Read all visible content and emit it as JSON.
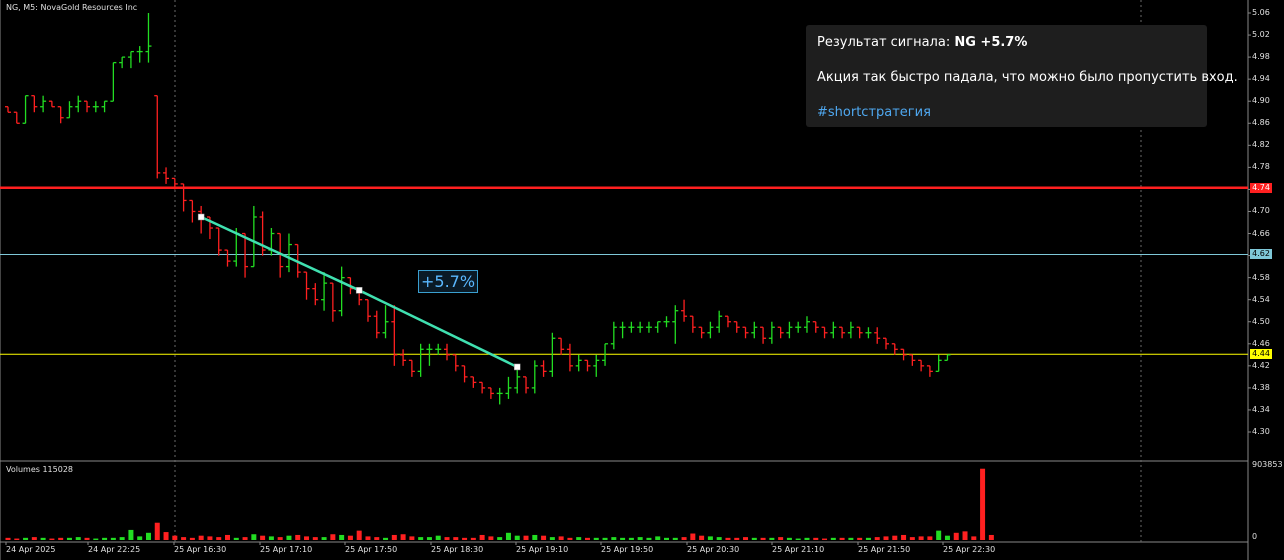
{
  "symbol_title": "NG, M5:  NovaGold Resources Inc",
  "volume_title": "Volumes 115028",
  "volume_max_label": "903853",
  "volume_zero_label": "0",
  "y_ticks": [
    "5.06",
    "5.02",
    "4.98",
    "4.94",
    "4.90",
    "4.86",
    "4.82",
    "4.78",
    "4.74",
    "4.70",
    "4.66",
    "4.62",
    "4.58",
    "4.54",
    "4.50",
    "4.46",
    "4.42",
    "4.38",
    "4.34",
    "4.30"
  ],
  "x_ticks": [
    "24 Apr 2025",
    "24 Apr 22:25",
    "25 Apr 16:30",
    "25 Apr 17:10",
    "25 Apr 17:50",
    "25 Apr 18:30",
    "25 Apr 19:10",
    "25 Apr 19:50",
    "25 Apr 20:30",
    "25 Apr 21:10",
    "25 Apr 21:50",
    "25 Apr 22:30"
  ],
  "price_lines": {
    "red": {
      "label": "4.74",
      "value": 4.743,
      "color": "#ff2020"
    },
    "cyan": {
      "label": "4.62",
      "value": 4.622,
      "color": "#7fc8d8"
    },
    "yellow": {
      "label": "4.44",
      "value": 4.441,
      "color": "#ffff00"
    }
  },
  "profit_label": "+5.7%",
  "signal": {
    "prefix": "Результат сигнала: ",
    "result": "NG +5.7%",
    "text": "Акция так быстро падала, что можно было пропустить вход.",
    "hashtag": "#shortстратегия"
  },
  "colors": {
    "up": "#22dd22",
    "down": "#ff2020",
    "trend": "#40e0b0",
    "grid": "#3a3a3a"
  },
  "chart_data": {
    "type": "bar",
    "title": "NG, M5:  NovaGold Resources Inc",
    "ylim": [
      4.26,
      5.08
    ],
    "signal_line": [
      {
        "bar": 22,
        "price": 4.69
      },
      {
        "bar": 40,
        "price": 4.557
      },
      {
        "bar": 58,
        "price": 4.418
      }
    ],
    "ohlc": [
      {
        "o": 4.89,
        "h": 4.89,
        "l": 4.88,
        "c": 4.88
      },
      {
        "o": 4.88,
        "h": 4.88,
        "l": 4.86,
        "c": 4.86
      },
      {
        "o": 4.86,
        "h": 4.91,
        "l": 4.86,
        "c": 4.91
      },
      {
        "o": 4.91,
        "h": 4.91,
        "l": 4.88,
        "c": 4.89
      },
      {
        "o": 4.89,
        "h": 4.91,
        "l": 4.88,
        "c": 4.9
      },
      {
        "o": 4.9,
        "h": 4.9,
        "l": 4.89,
        "c": 4.89
      },
      {
        "o": 4.89,
        "h": 4.89,
        "l": 4.86,
        "c": 4.87
      },
      {
        "o": 4.87,
        "h": 4.9,
        "l": 4.87,
        "c": 4.89
      },
      {
        "o": 4.89,
        "h": 4.91,
        "l": 4.88,
        "c": 4.9
      },
      {
        "o": 4.9,
        "h": 4.9,
        "l": 4.88,
        "c": 4.89
      },
      {
        "o": 4.89,
        "h": 4.9,
        "l": 4.88,
        "c": 4.89
      },
      {
        "o": 4.89,
        "h": 4.9,
        "l": 4.88,
        "c": 4.9
      },
      {
        "o": 4.9,
        "h": 4.97,
        "l": 4.9,
        "c": 4.97
      },
      {
        "o": 4.97,
        "h": 4.98,
        "l": 4.96,
        "c": 4.98
      },
      {
        "o": 4.98,
        "h": 4.99,
        "l": 4.96,
        "c": 4.99
      },
      {
        "o": 4.99,
        "h": 5.0,
        "l": 4.97,
        "c": 4.99
      },
      {
        "o": 4.99,
        "h": 5.06,
        "l": 4.97,
        "c": 5.0
      },
      {
        "o": 4.91,
        "h": 4.91,
        "l": 4.76,
        "c": 4.77
      },
      {
        "o": 4.77,
        "h": 4.78,
        "l": 4.75,
        "c": 4.76
      },
      {
        "o": 4.76,
        "h": 4.76,
        "l": 4.74,
        "c": 4.75
      },
      {
        "o": 4.75,
        "h": 4.75,
        "l": 4.7,
        "c": 4.72
      },
      {
        "o": 4.72,
        "h": 4.72,
        "l": 4.68,
        "c": 4.7
      },
      {
        "o": 4.7,
        "h": 4.71,
        "l": 4.66,
        "c": 4.69
      },
      {
        "o": 4.69,
        "h": 4.69,
        "l": 4.65,
        "c": 4.67
      },
      {
        "o": 4.67,
        "h": 4.67,
        "l": 4.62,
        "c": 4.63
      },
      {
        "o": 4.63,
        "h": 4.63,
        "l": 4.6,
        "c": 4.61
      },
      {
        "o": 4.61,
        "h": 4.67,
        "l": 4.6,
        "c": 4.66
      },
      {
        "o": 4.66,
        "h": 4.66,
        "l": 4.58,
        "c": 4.6
      },
      {
        "o": 4.6,
        "h": 4.71,
        "l": 4.6,
        "c": 4.69
      },
      {
        "o": 4.69,
        "h": 4.7,
        "l": 4.62,
        "c": 4.63
      },
      {
        "o": 4.63,
        "h": 4.67,
        "l": 4.62,
        "c": 4.66
      },
      {
        "o": 4.66,
        "h": 4.66,
        "l": 4.58,
        "c": 4.6
      },
      {
        "o": 4.6,
        "h": 4.66,
        "l": 4.59,
        "c": 4.64
      },
      {
        "o": 4.64,
        "h": 4.64,
        "l": 4.58,
        "c": 4.59
      },
      {
        "o": 4.59,
        "h": 4.59,
        "l": 4.54,
        "c": 4.56
      },
      {
        "o": 4.56,
        "h": 4.57,
        "l": 4.53,
        "c": 4.54
      },
      {
        "o": 4.54,
        "h": 4.59,
        "l": 4.52,
        "c": 4.57
      },
      {
        "o": 4.57,
        "h": 4.57,
        "l": 4.5,
        "c": 4.52
      },
      {
        "o": 4.52,
        "h": 4.6,
        "l": 4.51,
        "c": 4.58
      },
      {
        "o": 4.58,
        "h": 4.58,
        "l": 4.55,
        "c": 4.56
      },
      {
        "o": 4.56,
        "h": 4.56,
        "l": 4.53,
        "c": 4.54
      },
      {
        "o": 4.54,
        "h": 4.54,
        "l": 4.5,
        "c": 4.51
      },
      {
        "o": 4.51,
        "h": 4.52,
        "l": 4.47,
        "c": 4.48
      },
      {
        "o": 4.48,
        "h": 4.53,
        "l": 4.47,
        "c": 4.5
      },
      {
        "o": 4.5,
        "h": 4.53,
        "l": 4.42,
        "c": 4.44
      },
      {
        "o": 4.44,
        "h": 4.45,
        "l": 4.42,
        "c": 4.43
      },
      {
        "o": 4.43,
        "h": 4.43,
        "l": 4.4,
        "c": 4.41
      },
      {
        "o": 4.41,
        "h": 4.46,
        "l": 4.4,
        "c": 4.45
      },
      {
        "o": 4.45,
        "h": 4.46,
        "l": 4.42,
        "c": 4.45
      },
      {
        "o": 4.45,
        "h": 4.46,
        "l": 4.44,
        "c": 4.45
      },
      {
        "o": 4.45,
        "h": 4.46,
        "l": 4.43,
        "c": 4.44
      },
      {
        "o": 4.44,
        "h": 4.44,
        "l": 4.41,
        "c": 4.42
      },
      {
        "o": 4.42,
        "h": 4.42,
        "l": 4.39,
        "c": 4.4
      },
      {
        "o": 4.4,
        "h": 4.4,
        "l": 4.38,
        "c": 4.39
      },
      {
        "o": 4.39,
        "h": 4.39,
        "l": 4.37,
        "c": 4.38
      },
      {
        "o": 4.38,
        "h": 4.38,
        "l": 4.36,
        "c": 4.37
      },
      {
        "o": 4.37,
        "h": 4.38,
        "l": 4.35,
        "c": 4.37
      },
      {
        "o": 4.37,
        "h": 4.4,
        "l": 4.36,
        "c": 4.38
      },
      {
        "o": 4.38,
        "h": 4.42,
        "l": 4.37,
        "c": 4.4
      },
      {
        "o": 4.4,
        "h": 4.4,
        "l": 4.37,
        "c": 4.38
      },
      {
        "o": 4.38,
        "h": 4.43,
        "l": 4.37,
        "c": 4.42
      },
      {
        "o": 4.42,
        "h": 4.43,
        "l": 4.4,
        "c": 4.41
      },
      {
        "o": 4.41,
        "h": 4.48,
        "l": 4.4,
        "c": 4.47
      },
      {
        "o": 4.47,
        "h": 4.47,
        "l": 4.44,
        "c": 4.45
      },
      {
        "o": 4.45,
        "h": 4.46,
        "l": 4.41,
        "c": 4.42
      },
      {
        "o": 4.42,
        "h": 4.44,
        "l": 4.41,
        "c": 4.43
      },
      {
        "o": 4.43,
        "h": 4.43,
        "l": 4.41,
        "c": 4.42
      },
      {
        "o": 4.42,
        "h": 4.44,
        "l": 4.4,
        "c": 4.43
      },
      {
        "o": 4.43,
        "h": 4.46,
        "l": 4.42,
        "c": 4.46
      },
      {
        "o": 4.46,
        "h": 4.5,
        "l": 4.45,
        "c": 4.49
      },
      {
        "o": 4.49,
        "h": 4.5,
        "l": 4.47,
        "c": 4.49
      },
      {
        "o": 4.49,
        "h": 4.5,
        "l": 4.48,
        "c": 4.49
      },
      {
        "o": 4.49,
        "h": 4.5,
        "l": 4.48,
        "c": 4.49
      },
      {
        "o": 4.49,
        "h": 4.5,
        "l": 4.48,
        "c": 4.49
      },
      {
        "o": 4.49,
        "h": 4.5,
        "l": 4.48,
        "c": 4.5
      },
      {
        "o": 4.5,
        "h": 4.51,
        "l": 4.49,
        "c": 4.5
      },
      {
        "o": 4.5,
        "h": 4.53,
        "l": 4.46,
        "c": 4.52
      },
      {
        "o": 4.52,
        "h": 4.54,
        "l": 4.5,
        "c": 4.51
      },
      {
        "o": 4.51,
        "h": 4.51,
        "l": 4.48,
        "c": 4.49
      },
      {
        "o": 4.49,
        "h": 4.49,
        "l": 4.47,
        "c": 4.48
      },
      {
        "o": 4.48,
        "h": 4.5,
        "l": 4.47,
        "c": 4.49
      },
      {
        "o": 4.49,
        "h": 4.52,
        "l": 4.48,
        "c": 4.51
      },
      {
        "o": 4.51,
        "h": 4.51,
        "l": 4.49,
        "c": 4.5
      },
      {
        "o": 4.5,
        "h": 4.5,
        "l": 4.48,
        "c": 4.49
      },
      {
        "o": 4.49,
        "h": 4.49,
        "l": 4.47,
        "c": 4.48
      },
      {
        "o": 4.48,
        "h": 4.5,
        "l": 4.47,
        "c": 4.49
      },
      {
        "o": 4.49,
        "h": 4.49,
        "l": 4.46,
        "c": 4.47
      },
      {
        "o": 4.47,
        "h": 4.5,
        "l": 4.46,
        "c": 4.49
      },
      {
        "o": 4.49,
        "h": 4.49,
        "l": 4.47,
        "c": 4.48
      },
      {
        "o": 4.48,
        "h": 4.5,
        "l": 4.47,
        "c": 4.49
      },
      {
        "o": 4.49,
        "h": 4.5,
        "l": 4.48,
        "c": 4.49
      },
      {
        "o": 4.49,
        "h": 4.51,
        "l": 4.48,
        "c": 4.5
      },
      {
        "o": 4.5,
        "h": 4.5,
        "l": 4.48,
        "c": 4.49
      },
      {
        "o": 4.49,
        "h": 4.49,
        "l": 4.47,
        "c": 4.48
      },
      {
        "o": 4.48,
        "h": 4.5,
        "l": 4.47,
        "c": 4.49
      },
      {
        "o": 4.49,
        "h": 4.49,
        "l": 4.47,
        "c": 4.48
      },
      {
        "o": 4.48,
        "h": 4.5,
        "l": 4.47,
        "c": 4.49
      },
      {
        "o": 4.49,
        "h": 4.49,
        "l": 4.47,
        "c": 4.48
      },
      {
        "o": 4.48,
        "h": 4.49,
        "l": 4.47,
        "c": 4.48
      },
      {
        "o": 4.48,
        "h": 4.49,
        "l": 4.46,
        "c": 4.47
      },
      {
        "o": 4.47,
        "h": 4.47,
        "l": 4.45,
        "c": 4.46
      },
      {
        "o": 4.46,
        "h": 4.46,
        "l": 4.44,
        "c": 4.45
      },
      {
        "o": 4.45,
        "h": 4.45,
        "l": 4.43,
        "c": 4.44
      },
      {
        "o": 4.44,
        "h": 4.44,
        "l": 4.42,
        "c": 4.43
      },
      {
        "o": 4.43,
        "h": 4.43,
        "l": 4.41,
        "c": 4.42
      },
      {
        "o": 4.42,
        "h": 4.42,
        "l": 4.4,
        "c": 4.41
      },
      {
        "o": 4.41,
        "h": 4.44,
        "l": 4.41,
        "c": 4.43
      },
      {
        "o": 4.43,
        "h": 4.44,
        "l": 4.43,
        "c": 4.44
      }
    ],
    "volumes": [
      0.03,
      0.02,
      0.03,
      0.04,
      0.03,
      0.02,
      0.03,
      0.03,
      0.04,
      0.03,
      0.02,
      0.03,
      0.03,
      0.04,
      0.14,
      0.05,
      0.1,
      0.24,
      0.11,
      0.06,
      0.04,
      0.03,
      0.06,
      0.05,
      0.04,
      0.07,
      0.03,
      0.04,
      0.08,
      0.06,
      0.05,
      0.04,
      0.06,
      0.07,
      0.05,
      0.04,
      0.04,
      0.08,
      0.07,
      0.06,
      0.13,
      0.05,
      0.04,
      0.03,
      0.07,
      0.08,
      0.05,
      0.04,
      0.04,
      0.06,
      0.04,
      0.04,
      0.03,
      0.03,
      0.07,
      0.05,
      0.04,
      0.1,
      0.06,
      0.06,
      0.07,
      0.06,
      0.04,
      0.05,
      0.03,
      0.04,
      0.03,
      0.03,
      0.03,
      0.04,
      0.03,
      0.03,
      0.04,
      0.03,
      0.05,
      0.03,
      0.03,
      0.04,
      0.09,
      0.06,
      0.05,
      0.04,
      0.03,
      0.03,
      0.04,
      0.03,
      0.03,
      0.03,
      0.04,
      0.03,
      0.02,
      0.03,
      0.03,
      0.02,
      0.03,
      0.03,
      0.03,
      0.03,
      0.03,
      0.04,
      0.05,
      0.06,
      0.07,
      0.04,
      0.05,
      0.05,
      0.13,
      0.06,
      0.1,
      0.12,
      0.05,
      0.99,
      0.07
    ]
  }
}
